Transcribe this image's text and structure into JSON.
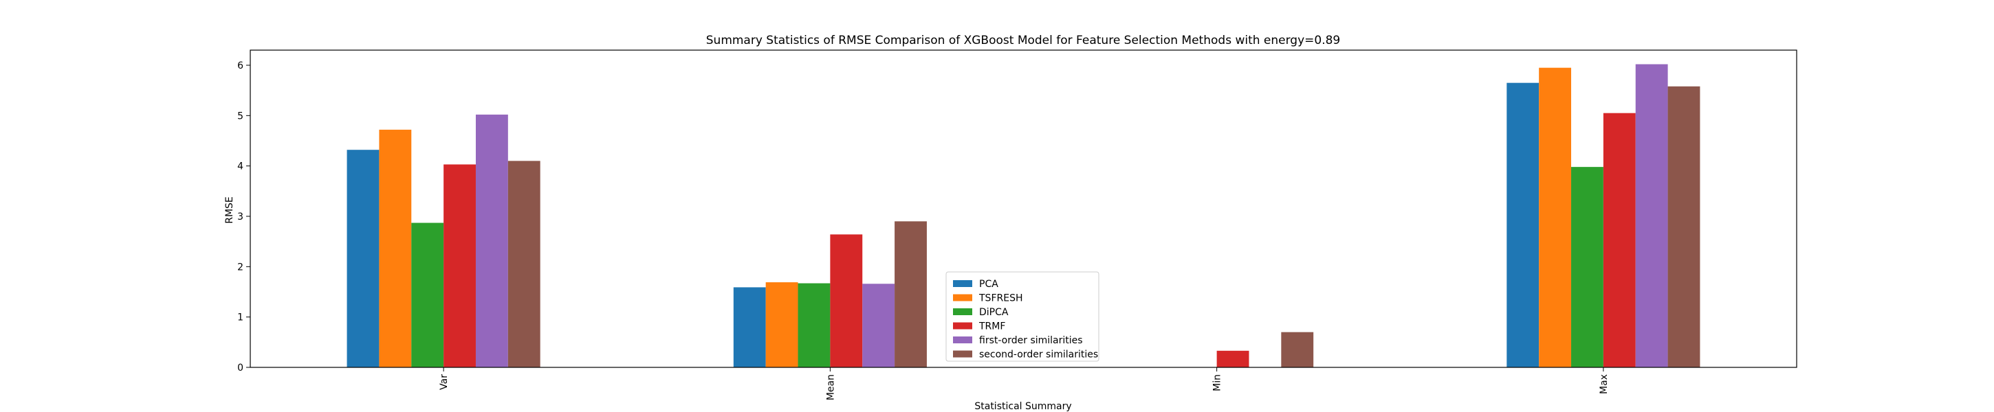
{
  "chart_data": {
    "type": "bar",
    "title": "Summary Statistics of RMSE Comparison of XGBoost Model for Feature Selection Methods with energy=0.89",
    "xlabel": "Statistical Summary",
    "ylabel": "RMSE",
    "categories": [
      "Var",
      "Mean",
      "Min",
      "Max"
    ],
    "yticks": [
      "0",
      "1",
      "2",
      "3",
      "4",
      "5",
      "6"
    ],
    "ylim": [
      0,
      6.3
    ],
    "grid": false,
    "legend_position": "lower-center",
    "series": [
      {
        "name": "PCA",
        "color": "#1f77b4",
        "values": [
          4.32,
          1.59,
          0,
          5.65
        ]
      },
      {
        "name": "TSFRESH",
        "color": "#ff7f0e",
        "values": [
          4.72,
          1.69,
          0,
          5.95
        ]
      },
      {
        "name": "DiPCA",
        "color": "#2ca02c",
        "values": [
          2.87,
          1.67,
          0,
          3.98
        ]
      },
      {
        "name": "TRMF",
        "color": "#d62728",
        "values": [
          4.03,
          2.64,
          0.33,
          5.05
        ]
      },
      {
        "name": "first-order similarities",
        "color": "#9467bd",
        "values": [
          5.02,
          1.66,
          0,
          6.02
        ]
      },
      {
        "name": "second-order similarities",
        "color": "#8c564b",
        "values": [
          4.1,
          2.9,
          0.7,
          5.58
        ]
      }
    ]
  }
}
